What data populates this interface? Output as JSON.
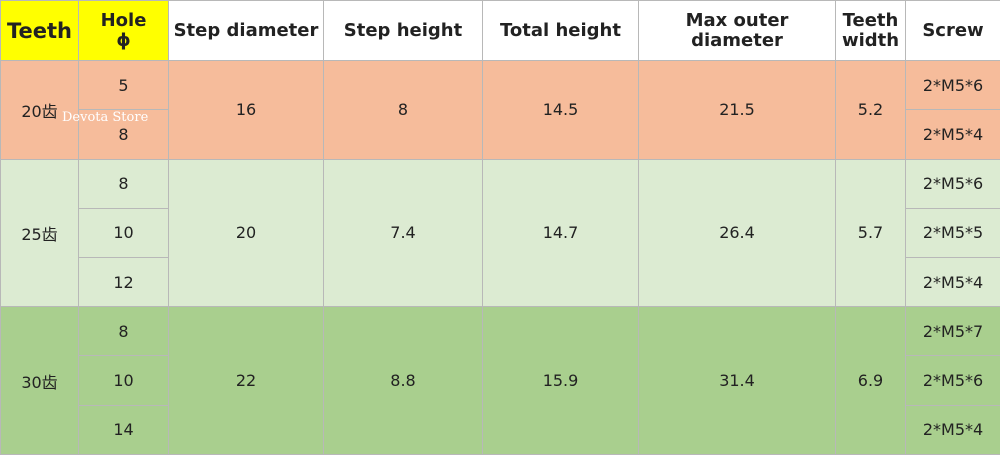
{
  "header": [
    "Teeth",
    "Hole\nϕ",
    "Step diameter",
    "Step height",
    "Total height",
    "Max outer diameter",
    "Teeth\nwidth",
    "Screw"
  ],
  "groups": [
    {
      "teeth": "20齿",
      "holes": [
        5,
        8
      ],
      "step_diameter": 16,
      "step_height": 8,
      "total_height": 14.5,
      "max_outer_diameter": 21.5,
      "teeth_width": 5.2,
      "screws": [
        "2*M5*6",
        "2*M5*4"
      ]
    },
    {
      "teeth": "25齿",
      "holes": [
        8,
        10,
        12
      ],
      "step_diameter": 20,
      "step_height": 7.4,
      "total_height": 14.7,
      "max_outer_diameter": 26.4,
      "teeth_width": 5.7,
      "screws": [
        "2*M5*6",
        "2*M5*5",
        "2*M5*4"
      ]
    },
    {
      "teeth": "30齿",
      "holes": [
        8,
        10,
        14
      ],
      "step_diameter": 22,
      "step_height": 8.8,
      "total_height": 15.9,
      "max_outer_diameter": 31.4,
      "teeth_width": 6.9,
      "screws": [
        "2*M5*7",
        "2*M5*6",
        "2*M5*4"
      ]
    }
  ],
  "watermark": "Devota Store"
}
